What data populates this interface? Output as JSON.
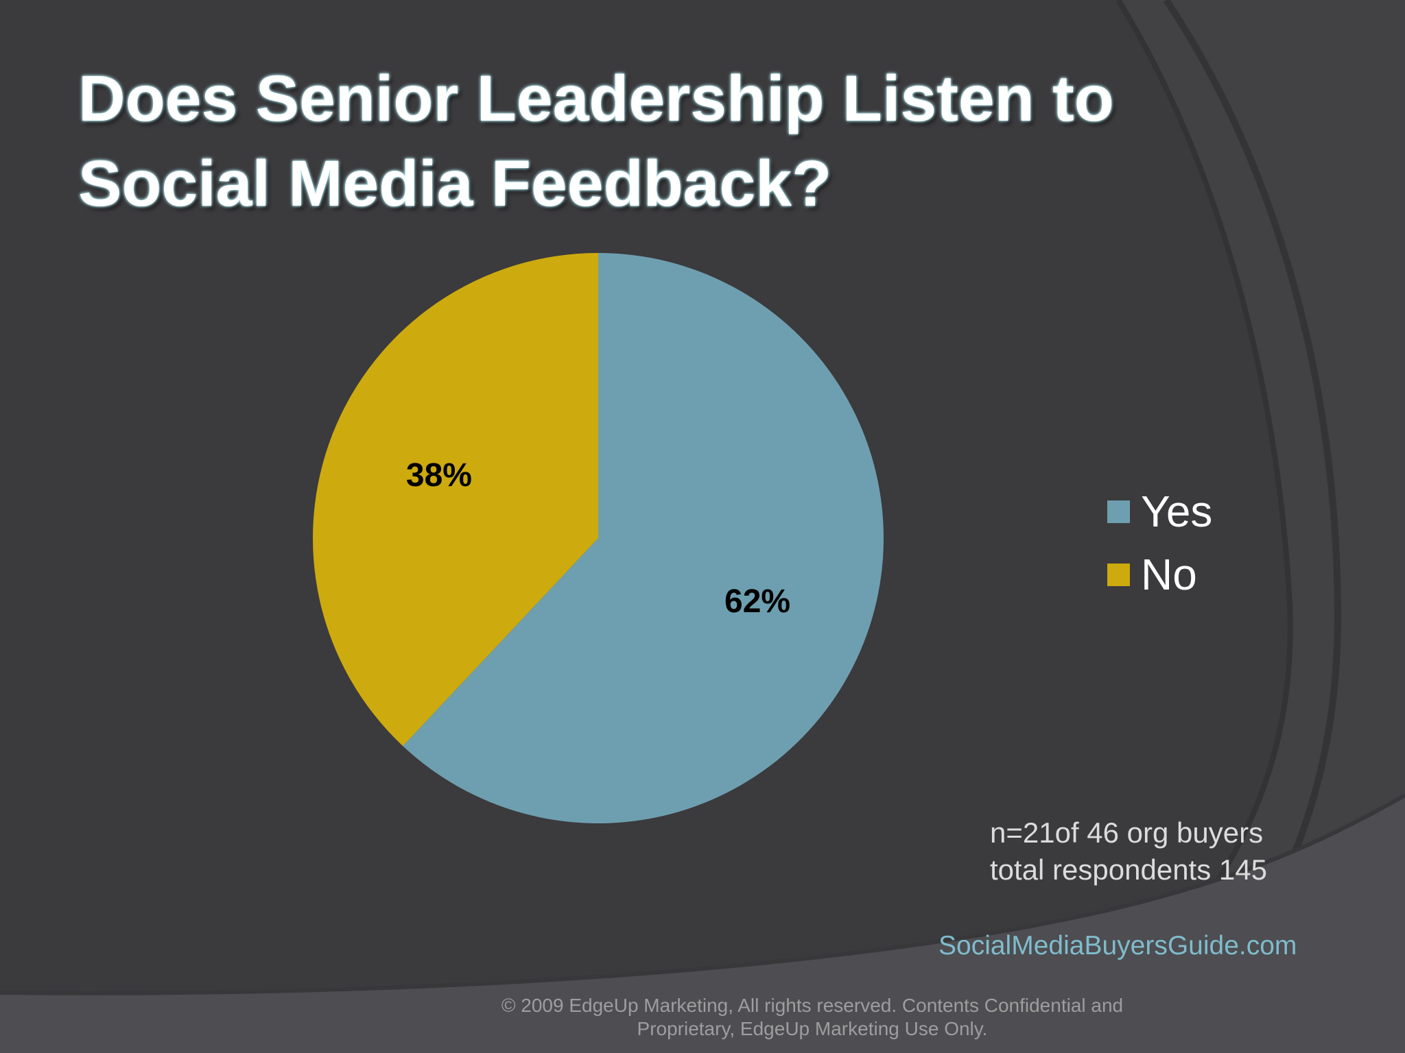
{
  "slide": {
    "title_line1": "Does Senior Leadership Listen to",
    "title_line2": "Social Media Feedback?"
  },
  "colors": {
    "background": "#3b3a3d",
    "yes": "#6e9fb0",
    "no": "#cdaa0e"
  },
  "chart_data": {
    "type": "pie",
    "title": "Does Senior Leadership Listen to Social Media Feedback?",
    "categories": [
      "Yes",
      "No"
    ],
    "values": [
      62,
      38
    ],
    "labels": [
      "62%",
      "38%"
    ],
    "legend": {
      "placement": "right",
      "items": [
        "Yes",
        "No"
      ]
    }
  },
  "notes": {
    "line1": "n=21of 46 org buyers",
    "line2": "total respondents 145"
  },
  "website": "SocialMediaBuyersGuide.com",
  "footer": {
    "line1": "© 2009 EdgeUp Marketing, All rights reserved. Contents Confidential and",
    "line2": "Proprietary, EdgeUp Marketing Use Only."
  }
}
